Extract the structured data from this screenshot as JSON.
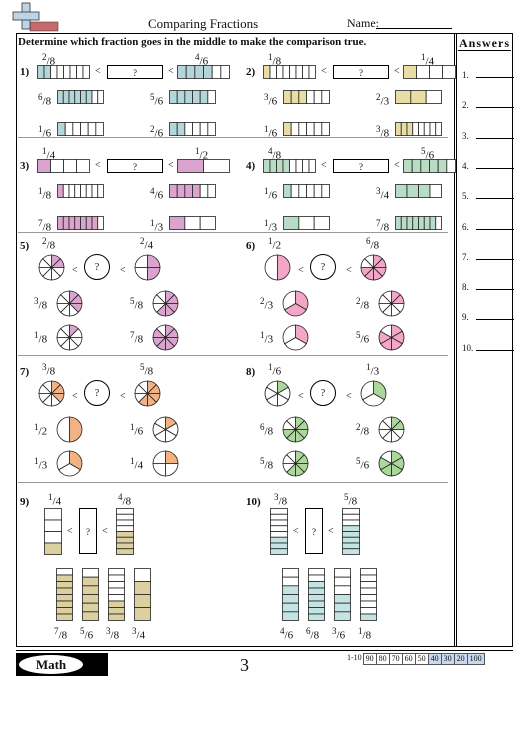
{
  "header": {
    "title": "Comparing Fractions",
    "name_label": "Name:"
  },
  "instructions": "Determine which fraction goes in the middle to make the comparison true.",
  "answers": {
    "heading": "Answers",
    "items": [
      "1.",
      "2.",
      "3.",
      "4.",
      "5.",
      "6.",
      "7.",
      "8.",
      "9.",
      "10."
    ]
  },
  "colors": {
    "blue": "#b5d6d8",
    "yellow": "#e8dea5",
    "pink": "#dba4cf",
    "green": "#b8dcc4",
    "magenta": "#ffd6e6",
    "orange": "#f2b384",
    "lime": "#a9d89a",
    "tan": "#dccfa0",
    "cyan": "#c4e4e4"
  },
  "compare_symbol": "<",
  "unknown": "?",
  "problems": [
    {
      "n": "1)",
      "left": {
        "num": "2",
        "den": "8"
      },
      "right": {
        "num": "4",
        "den": "6"
      },
      "opts": [
        {
          "num": "6",
          "den": "8"
        },
        {
          "num": "5",
          "den": "6"
        },
        {
          "num": "1",
          "den": "6"
        },
        {
          "num": "2",
          "den": "6"
        }
      ]
    },
    {
      "n": "2)",
      "left": {
        "num": "1",
        "den": "8"
      },
      "right": {
        "num": "1",
        "den": "4"
      },
      "opts": [
        {
          "num": "3",
          "den": "6"
        },
        {
          "num": "2",
          "den": "3"
        },
        {
          "num": "1",
          "den": "6"
        },
        {
          "num": "3",
          "den": "8"
        }
      ]
    },
    {
      "n": "3)",
      "left": {
        "num": "1",
        "den": "4"
      },
      "right": {
        "num": "1",
        "den": "2"
      },
      "opts": [
        {
          "num": "1",
          "den": "8"
        },
        {
          "num": "4",
          "den": "6"
        },
        {
          "num": "7",
          "den": "8"
        },
        {
          "num": "1",
          "den": "3"
        }
      ]
    },
    {
      "n": "4)",
      "left": {
        "num": "4",
        "den": "8"
      },
      "right": {
        "num": "5",
        "den": "6"
      },
      "opts": [
        {
          "num": "1",
          "den": "6"
        },
        {
          "num": "3",
          "den": "4"
        },
        {
          "num": "1",
          "den": "3"
        },
        {
          "num": "7",
          "den": "8"
        }
      ]
    },
    {
      "n": "5)",
      "left": {
        "num": "2",
        "den": "8"
      },
      "right": {
        "num": "2",
        "den": "4"
      },
      "opts": [
        {
          "num": "3",
          "den": "8"
        },
        {
          "num": "5",
          "den": "8"
        },
        {
          "num": "1",
          "den": "8"
        },
        {
          "num": "7",
          "den": "8"
        }
      ]
    },
    {
      "n": "6)",
      "left": {
        "num": "1",
        "den": "2"
      },
      "right": {
        "num": "6",
        "den": "8"
      },
      "opts": [
        {
          "num": "2",
          "den": "3"
        },
        {
          "num": "2",
          "den": "8"
        },
        {
          "num": "1",
          "den": "3"
        },
        {
          "num": "5",
          "den": "6"
        }
      ]
    },
    {
      "n": "7)",
      "left": {
        "num": "3",
        "den": "8"
      },
      "right": {
        "num": "5",
        "den": "8"
      },
      "opts": [
        {
          "num": "1",
          "den": "2"
        },
        {
          "num": "1",
          "den": "6"
        },
        {
          "num": "1",
          "den": "3"
        },
        {
          "num": "1",
          "den": "4"
        }
      ]
    },
    {
      "n": "8)",
      "left": {
        "num": "1",
        "den": "6"
      },
      "right": {
        "num": "1",
        "den": "3"
      },
      "opts": [
        {
          "num": "6",
          "den": "8"
        },
        {
          "num": "2",
          "den": "8"
        },
        {
          "num": "5",
          "den": "8"
        },
        {
          "num": "5",
          "den": "6"
        }
      ]
    },
    {
      "n": "9)",
      "left": {
        "num": "1",
        "den": "4"
      },
      "right": {
        "num": "4",
        "den": "8"
      },
      "opts": [
        {
          "num": "7",
          "den": "8"
        },
        {
          "num": "5",
          "den": "6"
        },
        {
          "num": "3",
          "den": "8"
        },
        {
          "num": "3",
          "den": "4"
        }
      ]
    },
    {
      "n": "10)",
      "left": {
        "num": "3",
        "den": "8"
      },
      "right": {
        "num": "5",
        "den": "8"
      },
      "opts": [
        {
          "num": "4",
          "den": "6"
        },
        {
          "num": "6",
          "den": "8"
        },
        {
          "num": "3",
          "den": "6"
        },
        {
          "num": "1",
          "den": "8"
        }
      ]
    }
  ],
  "footer": {
    "brand": "Math",
    "page": "3",
    "scale": [
      "1-10",
      "90",
      "80",
      "70",
      "60",
      "50",
      "40",
      "30",
      "20",
      "100"
    ]
  }
}
